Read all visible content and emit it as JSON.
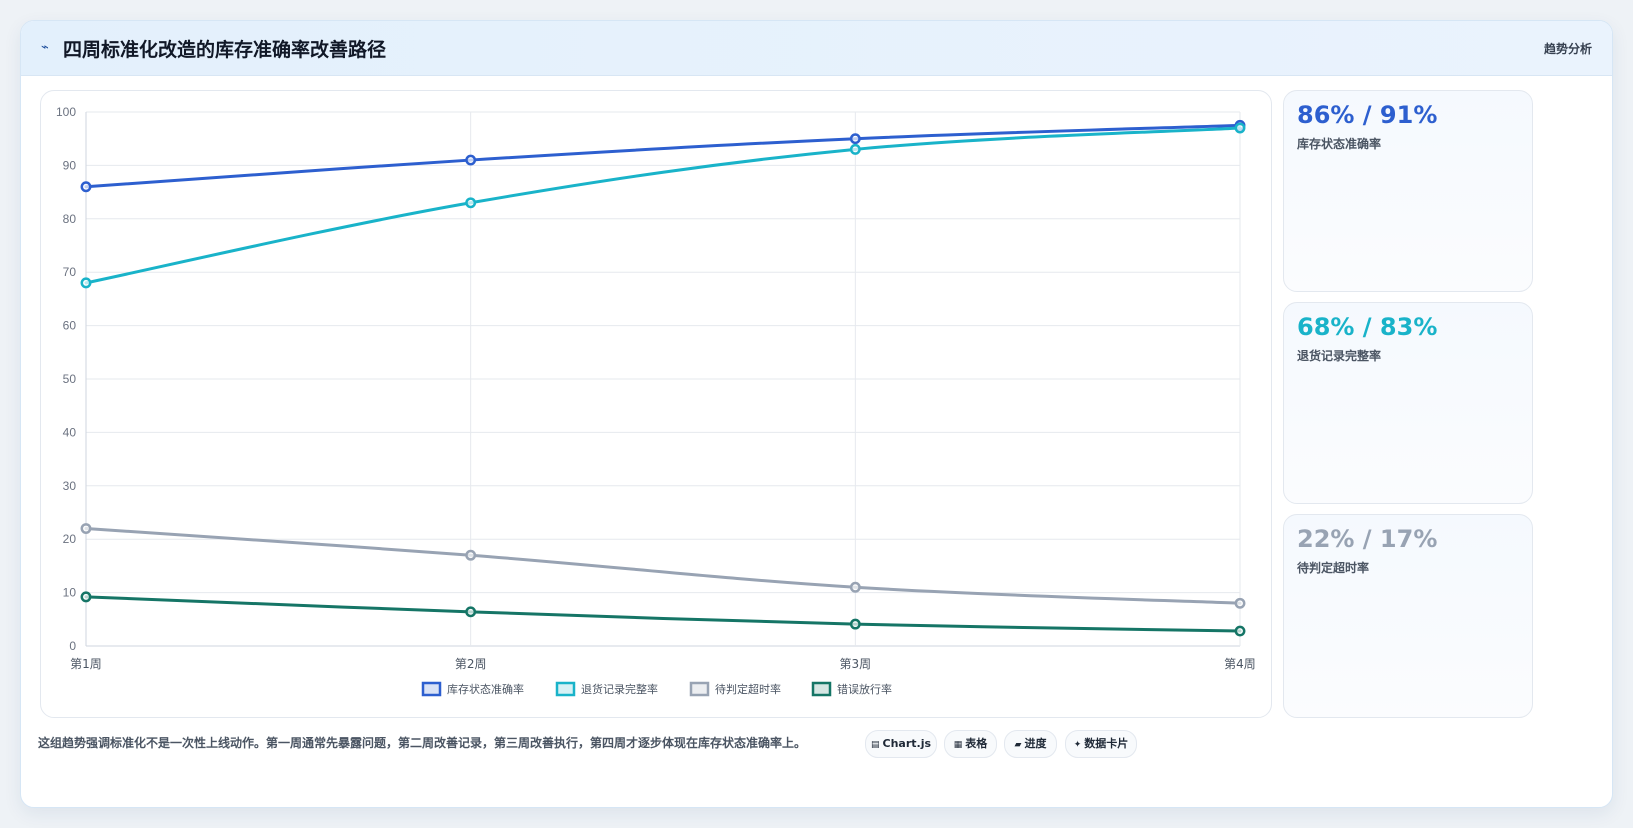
{
  "header": {
    "icon": "⌁",
    "title": "四周标准化改造的库存准确率改善路径",
    "tag": "趋势分析"
  },
  "chart_data": {
    "type": "line",
    "title": "",
    "xlabel": "",
    "ylabel": "",
    "categories": [
      "第1周",
      "第2周",
      "第3周",
      "第4周"
    ],
    "ylim": [
      0,
      100
    ],
    "yticks": [
      0,
      10,
      20,
      30,
      40,
      50,
      60,
      70,
      80,
      90,
      100
    ],
    "grid": true,
    "legend_position": "bottom",
    "series": [
      {
        "name": "库存状态准确率",
        "color": "#2d5fcf",
        "values": [
          86,
          91,
          95,
          97.5
        ]
      },
      {
        "name": "退货记录完整率",
        "color": "#19b3c9",
        "values": [
          68,
          83,
          93,
          97
        ]
      },
      {
        "name": "待判定超时率",
        "color": "#98a3b3",
        "values": [
          22,
          17,
          11,
          8
        ]
      },
      {
        "name": "错误放行率",
        "color": "#157566",
        "values": [
          9.2,
          6.4,
          4.1,
          2.8
        ]
      }
    ]
  },
  "side_cards": [
    {
      "value": "86% / 91%",
      "label": "库存状态准确率",
      "color": "#2d5fcf"
    },
    {
      "value": "68% / 83%",
      "label": "退货记录完整率",
      "color": "#19b3c9"
    },
    {
      "value": "22% / 17%",
      "label": "待判定超时率",
      "color": "#98a3b3"
    }
  ],
  "footer": {
    "note": "这组趋势强调标准化不是一次性上线动作。第一周通常先暴露问题，第二周改善记录，第三周改善执行，第四周才逐步体现在库存状态准确率上。",
    "pills": [
      {
        "icon": "▤",
        "label": "Chart.js"
      },
      {
        "icon": "▦",
        "label": "表格"
      },
      {
        "icon": "▰",
        "label": "进度"
      },
      {
        "icon": "✦",
        "label": "数据卡片"
      }
    ]
  }
}
